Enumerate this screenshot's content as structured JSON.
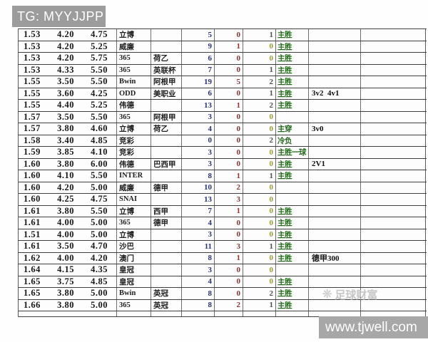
{
  "watermarks": {
    "tg_label": "TG: MYYJJPP",
    "brand_label": "足球财富",
    "brand_icon": "starburst",
    "site_label": "www.tjwell.com"
  },
  "colors": {
    "watermark_box_gray": "#9c9c9c",
    "site_box_gray": "#a7a7a7",
    "count1_navy": "#28327e",
    "count2_red": "#8c3434",
    "count3_zero_olive": "#9aa024",
    "result_green": "#27691f",
    "border_dark": "#3f3f3f"
  },
  "table": {
    "columns": [
      "odds",
      "bookmaker",
      "league",
      "count1",
      "count2",
      "count3",
      "result",
      "note",
      "empty"
    ],
    "rows": [
      {
        "odds": [
          "1.53",
          "4.20",
          "4.75"
        ],
        "bookmaker": "立博",
        "league": "",
        "n1": "5",
        "n2": "0",
        "n3": "1",
        "result": "主胜",
        "note": ""
      },
      {
        "odds": [
          "1.53",
          "4.20",
          "5.25"
        ],
        "bookmaker": "威廉",
        "league": "",
        "n1": "9",
        "n2": "1",
        "n3": "0",
        "result": "主胜",
        "note": ""
      },
      {
        "odds": [
          "1.53",
          "4.20",
          "5.75"
        ],
        "bookmaker": "365",
        "league": "荷乙",
        "n1": "6",
        "n2": "0",
        "n3": "0",
        "result": "主胜",
        "note": ""
      },
      {
        "odds": [
          "1.53",
          "4.33",
          "5.50"
        ],
        "bookmaker": "365",
        "league": "英联杯",
        "n1": "7",
        "n2": "0",
        "n3": "1",
        "result": "主胜",
        "note": ""
      },
      {
        "odds": [
          "1.55",
          "3.50",
          "5.50"
        ],
        "bookmaker": "Bwin",
        "league": "阿根甲",
        "n1": "19",
        "n2": "5",
        "n3": "2",
        "result": "主胜",
        "note": ""
      },
      {
        "odds": [
          "1.55",
          "3.60",
          "4.25"
        ],
        "bookmaker": "ODD",
        "league": "美职业",
        "n1": "6",
        "n2": "0",
        "n3": "1",
        "result": "主胜",
        "note": "3v2  4v1"
      },
      {
        "odds": [
          "1.55",
          "4.40",
          "5.25"
        ],
        "bookmaker": "伟德",
        "league": "",
        "n1": "13",
        "n2": "1",
        "n3": "2",
        "result": "主胜",
        "note": ""
      },
      {
        "odds": [
          "1.57",
          "3.50",
          "5.50"
        ],
        "bookmaker": "365",
        "league": "阿根甲",
        "n1": "3",
        "n2": "0",
        "n3": "0",
        "result": "",
        "note": ""
      },
      {
        "odds": [
          "1.57",
          "3.80",
          "4.60"
        ],
        "bookmaker": "立博",
        "league": "荷乙",
        "n1": "4",
        "n2": "0",
        "n3": "0",
        "result": "主穿",
        "note": "3v0"
      },
      {
        "odds": [
          "1.58",
          "3.40",
          "4.85"
        ],
        "bookmaker": "竞彩",
        "league": "",
        "n1": "0",
        "n2": "0",
        "n3": "2",
        "result": "冷负",
        "note": ""
      },
      {
        "odds": [
          "1.59",
          "3.85",
          "4.10"
        ],
        "bookmaker": "竞彩",
        "league": "",
        "n1": "3",
        "n2": "0",
        "n3": "0",
        "result": "主胜一球",
        "note": ""
      },
      {
        "odds": [
          "1.60",
          "3.80",
          "6.00"
        ],
        "bookmaker": "伟德",
        "league": "巴西甲",
        "n1": "3",
        "n2": "0",
        "n3": "0",
        "result": "主胜",
        "note": "2V1"
      },
      {
        "odds": [
          "1.60",
          "4.10",
          "5.50"
        ],
        "bookmaker": "INTER",
        "league": "",
        "n1": "8",
        "n2": "1",
        "n3": "1",
        "result": "主胜",
        "note": ""
      },
      {
        "odds": [
          "1.60",
          "4.20",
          "5.00"
        ],
        "bookmaker": "威廉",
        "league": "德甲",
        "n1": "10",
        "n2": "2",
        "n3": "0",
        "result": "",
        "note": ""
      },
      {
        "odds": [
          "1.60",
          "4.25",
          "4.75"
        ],
        "bookmaker": "SNAI",
        "league": "",
        "n1": "13",
        "n2": "3",
        "n3": "0",
        "result": "",
        "note": ""
      },
      {
        "odds": [
          "1.61",
          "3.80",
          "5.50"
        ],
        "bookmaker": "立博",
        "league": "西甲",
        "n1": "7",
        "n2": "1",
        "n3": "0",
        "result": "主胜",
        "note": ""
      },
      {
        "odds": [
          "1.61",
          "4.00",
          "5.00"
        ],
        "bookmaker": "365",
        "league": "德甲",
        "n1": "4",
        "n2": "0",
        "n3": "0",
        "result": "主胜",
        "note": ""
      },
      {
        "odds": [
          "1.51",
          "4.00",
          "5.00"
        ],
        "bookmaker": "立博",
        "league": "",
        "n1": "3",
        "n2": "0",
        "n3": "0",
        "result": "主胜",
        "note": ""
      },
      {
        "odds": [
          "1.61",
          "3.50",
          "4.70"
        ],
        "bookmaker": "沙巴",
        "league": "",
        "n1": "11",
        "n2": "3",
        "n3": "1",
        "result": "主胜",
        "note": ""
      },
      {
        "odds": [
          "1.62",
          "4.00",
          "4.20"
        ],
        "bookmaker": "澳门",
        "league": "",
        "n1": "8",
        "n2": "1",
        "n3": "0",
        "result": "主胜",
        "note": "德甲300"
      },
      {
        "odds": [
          "1.64",
          "4.15",
          "4.35"
        ],
        "bookmaker": "皇冠",
        "league": "",
        "n1": "3",
        "n2": "0",
        "n3": "0",
        "result": "",
        "note": ""
      },
      {
        "odds": [
          "1.65",
          "3.75",
          "4.85"
        ],
        "bookmaker": "皇冠",
        "league": "",
        "n1": "4",
        "n2": "0",
        "n3": "0",
        "result": "主胜",
        "note": ""
      },
      {
        "odds": [
          "1.65",
          "3.80",
          "5.00"
        ],
        "bookmaker": "Bwin",
        "league": "英冠",
        "n1": "8",
        "n2": "0",
        "n3": "2",
        "result": "主胜",
        "note": ""
      },
      {
        "odds": [
          "1.66",
          "3.80",
          "5.00"
        ],
        "bookmaker": "365",
        "league": "英冠",
        "n1": "8",
        "n2": "2",
        "n3": "1",
        "result": "主胜",
        "note": ""
      }
    ]
  }
}
